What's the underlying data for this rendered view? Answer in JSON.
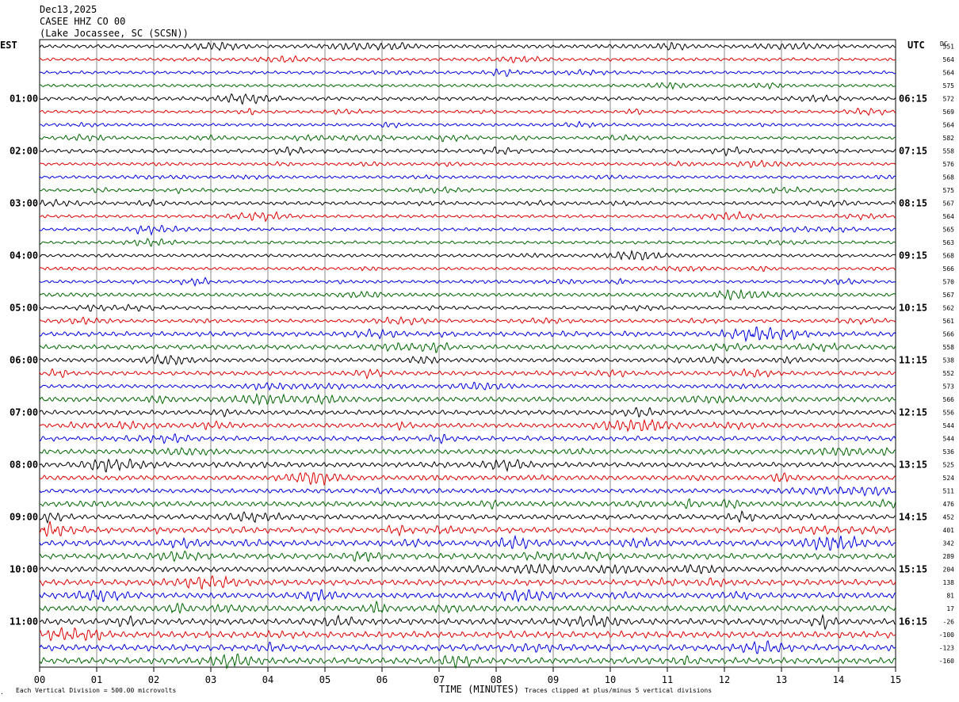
{
  "header": {
    "date": "Dec13,2025",
    "station": "CASEE HHZ CO 00",
    "location": "(Lake Jocassee, SC (SCSN))"
  },
  "left_tz": "EST",
  "right_tz": "UTC",
  "dc_header": "DC",
  "footer": {
    "division": "Each Vertical Division =  500.00 microvolts",
    "xlabel": "TIME (MINUTES)",
    "clip_note": "Traces clipped at plus/minus 5 vertical divisions"
  },
  "colors": {
    "trace_cycle": [
      "#000000",
      "#dd0000",
      "#0000dd",
      "#006600"
    ],
    "grid": "#888888"
  },
  "chart_data": {
    "type": "line",
    "subtype": "helicorder",
    "xlabel": "TIME (MINUTES)",
    "x_ticks": [
      "00",
      "01",
      "02",
      "03",
      "04",
      "05",
      "06",
      "07",
      "08",
      "09",
      "10",
      "11",
      "12",
      "13",
      "14",
      "15"
    ],
    "xlim": [
      0,
      15
    ],
    "minutes_per_line": 15,
    "left_hour_labels": [
      "01:00",
      "02:00",
      "03:00",
      "04:00",
      "05:00",
      "06:00",
      "07:00",
      "08:00",
      "09:00",
      "10:00",
      "11:00"
    ],
    "right_hour_labels": [
      "06:15",
      "07:15",
      "08:15",
      "09:15",
      "10:15",
      "11:15",
      "12:15",
      "13:15",
      "14:15",
      "15:15",
      "16:15"
    ],
    "dc_offsets": [
      551,
      564,
      564,
      575,
      572,
      569,
      564,
      582,
      558,
      576,
      568,
      575,
      567,
      564,
      565,
      563,
      568,
      566,
      570,
      567,
      562,
      561,
      566,
      558,
      538,
      552,
      573,
      566,
      556,
      544,
      544,
      536,
      525,
      524,
      511,
      476,
      452,
      401,
      342,
      289,
      204,
      138,
      81,
      17,
      -26,
      -100,
      -123,
      -160
    ],
    "trace_amplitude_level": [
      2.0,
      1.6,
      1.6,
      1.6,
      2.0,
      1.6,
      1.6,
      1.6,
      2.0,
      1.6,
      1.6,
      1.6,
      1.8,
      1.6,
      1.6,
      1.6,
      1.8,
      1.6,
      1.6,
      2.0,
      1.8,
      1.8,
      2.4,
      2.4,
      2.2,
      2.2,
      2.0,
      2.8,
      2.4,
      2.4,
      2.4,
      2.6,
      2.6,
      2.6,
      2.4,
      2.8,
      2.6,
      2.8,
      3.0,
      3.0,
      3.0,
      3.0,
      3.0,
      3.2,
      3.2,
      3.2,
      3.2,
      3.2
    ]
  }
}
